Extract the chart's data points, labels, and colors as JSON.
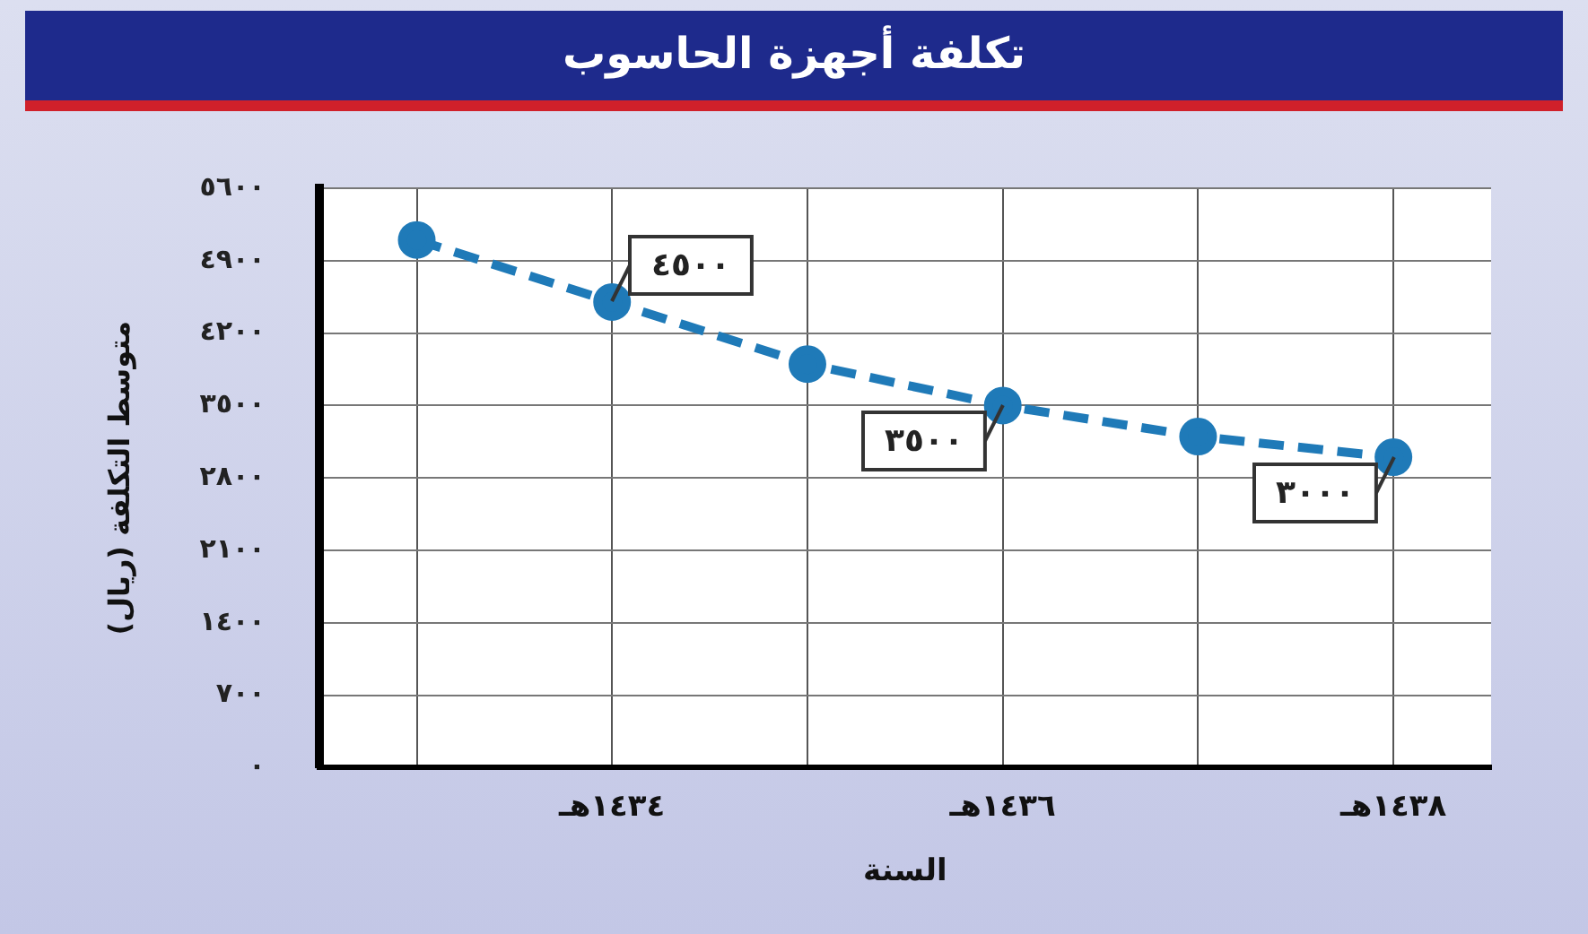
{
  "chart_data": {
    "type": "line",
    "title": "تكلفة أجهزة الحاسوب",
    "xlabel": "السنة",
    "ylabel": "متوسط التكلفة (ريال)",
    "categories": [
      null,
      "١٤٣٤هـ",
      null,
      "١٤٣٦هـ",
      null,
      "١٤٣٨هـ"
    ],
    "series": [
      {
        "color": "#1f7ab8",
        "values": [
          5100,
          4500,
          3900,
          3500,
          3200,
          3000
        ]
      }
    ],
    "ylim": [
      0,
      5600
    ],
    "yticks": [
      {
        "value": 0,
        "label": "٠"
      },
      {
        "value": 700,
        "label": "٧٠٠"
      },
      {
        "value": 1400,
        "label": "١٤٠٠"
      },
      {
        "value": 2100,
        "label": "٢١٠٠"
      },
      {
        "value": 2800,
        "label": "٢٨٠٠"
      },
      {
        "value": 3500,
        "label": "٣٥٠٠"
      },
      {
        "value": 4200,
        "label": "٤٢٠٠"
      },
      {
        "value": 4900,
        "label": "٤٩٠٠"
      },
      {
        "value": 5600,
        "label": "٥٦٠٠"
      }
    ],
    "annotations": [
      {
        "text": "٤٥٠٠",
        "x": "١٤٣٤هـ",
        "y": 4500
      },
      {
        "text": "٣٥٠٠",
        "x": "١٤٣٦هـ",
        "y": 3500
      },
      {
        "text": "٣٠٠٠",
        "x": "١٤٣٨هـ",
        "y": 3000
      }
    ],
    "grid": true,
    "legend": false,
    "marker": "circle",
    "line_style": "dashed"
  }
}
